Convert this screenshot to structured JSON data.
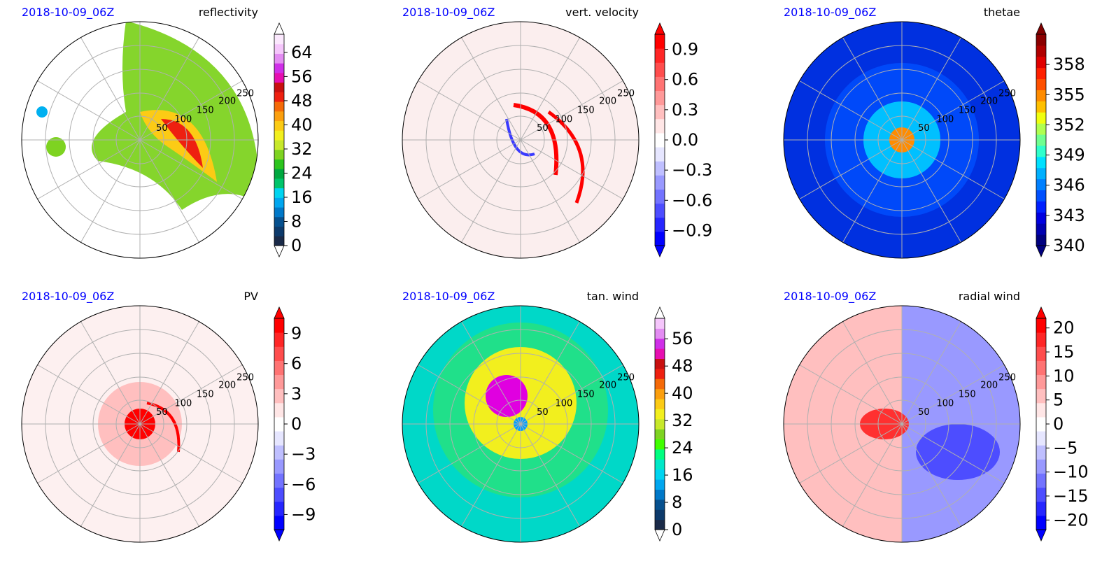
{
  "figure": {
    "background": "#ffffff"
  },
  "chart_data": [
    {
      "type": "heatmap",
      "projection": "polar",
      "date_label": "2018-10-09_06Z",
      "title": "reflectivity",
      "ring_labels": [
        "50",
        "100",
        "150",
        "200",
        "250"
      ],
      "colorbar": {
        "ticks": [
          "0",
          "8",
          "16",
          "24",
          "32",
          "40",
          "48",
          "56",
          "64"
        ],
        "range": [
          0,
          70
        ],
        "extend": "both",
        "colors": [
          "#1a2a48",
          "#0d3a6b",
          "#06508e",
          "#0078c8",
          "#00a6ef",
          "#00d4f0",
          "#00c46a",
          "#00a840",
          "#2cc41e",
          "#7ed321",
          "#c7e82a",
          "#f2ef1e",
          "#fccb15",
          "#fb9f0e",
          "#f56a08",
          "#ee2010",
          "#c81010",
          "#e60fb0",
          "#cf2fe8",
          "#e38cf2",
          "#f5c6fb",
          "#fbe8fd"
        ],
        "extend_low": "#ffffff",
        "extend_high": "#ffffff"
      },
      "field_colors": {
        "background": "#ffffff",
        "weak": "#00b0f0",
        "moderate": "#7ed321",
        "strong": "#fccb15",
        "core": "#ee2010"
      }
    },
    {
      "type": "heatmap",
      "projection": "polar",
      "date_label": "2018-10-09_06Z",
      "title": "vert. velocity",
      "ring_labels": [
        "50",
        "100",
        "150",
        "200",
        "250"
      ],
      "colorbar": {
        "ticks": [
          "0.9",
          "0.6",
          "0.3",
          "0.0",
          "−0.3",
          "−0.6",
          "−0.9"
        ],
        "range": [
          -1.05,
          1.05
        ],
        "extend": "both",
        "colors": [
          "#0000ff",
          "#2626ff",
          "#4d4dff",
          "#7373ff",
          "#9999ff",
          "#bfbfff",
          "#e6e6ff",
          "#ffffff",
          "#ffe6e6",
          "#ffbfbf",
          "#ff9999",
          "#ff7373",
          "#ff4d4d",
          "#ff2626",
          "#ff0000"
        ],
        "extend_low": "#0000ff",
        "extend_high": "#ff0000"
      },
      "field_colors": {
        "background": "#fbeeee",
        "up": "#ff0000",
        "down": "#3a3aff"
      }
    },
    {
      "type": "heatmap",
      "projection": "polar",
      "date_label": "2018-10-09_06Z",
      "title": "thetae",
      "ring_labels": [
        "50",
        "100",
        "150",
        "200",
        "250"
      ],
      "colorbar": {
        "ticks": [
          "340",
          "343",
          "346",
          "349",
          "352",
          "355",
          "358"
        ],
        "range": [
          340,
          361
        ],
        "extend": "both",
        "colors": [
          "#00007f",
          "#0000b0",
          "#0000e0",
          "#0020ff",
          "#0050ff",
          "#0080ff",
          "#00b0ff",
          "#00e0ff",
          "#30ffcc",
          "#70ff90",
          "#b0ff50",
          "#f0ff10",
          "#ffc000",
          "#ff8c00",
          "#ff5000",
          "#ff2000",
          "#e00000",
          "#b00000",
          "#8b0000"
        ],
        "extend_low": "#00007f",
        "extend_high": "#800000"
      },
      "field_colors": {
        "background": "#0030e0",
        "mid": "#00c0ff",
        "warm_core": "#ff8c00"
      }
    },
    {
      "type": "heatmap",
      "projection": "polar",
      "date_label": "2018-10-09_06Z",
      "title": "PV",
      "ring_labels": [
        "50",
        "100",
        "150",
        "200",
        "250"
      ],
      "colorbar": {
        "ticks": [
          "9",
          "6",
          "3",
          "0",
          "−3",
          "−6",
          "−9"
        ],
        "range": [
          -10.5,
          10.5
        ],
        "extend": "both",
        "colors": [
          "#0000ff",
          "#2626ff",
          "#4d4dff",
          "#7373ff",
          "#9999ff",
          "#bfbfff",
          "#e6e6ff",
          "#ffffff",
          "#ffe6e6",
          "#ffbfbf",
          "#ff9999",
          "#ff7373",
          "#ff4d4d",
          "#ff2626",
          "#ff0000"
        ],
        "extend_low": "#0000ff",
        "extend_high": "#ff0000"
      },
      "field_colors": {
        "background": "#fdf0f0",
        "positive": "#ff0000",
        "negative": "#4040ff"
      }
    },
    {
      "type": "heatmap",
      "projection": "polar",
      "date_label": "2018-10-09_06Z",
      "title": "tan. wind",
      "ring_labels": [
        "50",
        "100",
        "150",
        "200",
        "250"
      ],
      "colorbar": {
        "ticks": [
          "0",
          "8",
          "16",
          "24",
          "32",
          "40",
          "48",
          "56"
        ],
        "range": [
          0,
          62
        ],
        "extend": "both",
        "colors": [
          "#1a2a48",
          "#0d3a6b",
          "#06508e",
          "#0078c8",
          "#00a6ef",
          "#00d4f0",
          "#00e8c8",
          "#00ff80",
          "#40ff00",
          "#7ed321",
          "#c7e82a",
          "#f2ef1e",
          "#fccb15",
          "#fb9f0e",
          "#f56a08",
          "#ee2010",
          "#c81010",
          "#e60fb0",
          "#cf2fe8",
          "#e38cf2",
          "#f5c6fb"
        ],
        "extend_low": "#ffffff",
        "extend_high": "#ffffff"
      },
      "field_colors": {
        "background": "#20e08a",
        "ring": "#f2ef1e",
        "max": "#e000e0",
        "outer": "#00d8c8"
      }
    },
    {
      "type": "heatmap",
      "projection": "polar",
      "date_label": "2018-10-09_06Z",
      "title": "radial wind",
      "ring_labels": [
        "50",
        "100",
        "150",
        "200",
        "250"
      ],
      "colorbar": {
        "ticks": [
          "20",
          "15",
          "10",
          "5",
          "0",
          "−5",
          "−10",
          "−15",
          "−20"
        ],
        "range": [
          -22,
          22
        ],
        "extend": "both",
        "colors": [
          "#0000ff",
          "#2626ff",
          "#4d4dff",
          "#7373ff",
          "#9999ff",
          "#bfbfff",
          "#e6e6ff",
          "#ffffff",
          "#ffe6e6",
          "#ffbfbf",
          "#ff9999",
          "#ff7373",
          "#ff4d4d",
          "#ff2626",
          "#ff0000"
        ],
        "extend_low": "#0000ff",
        "extend_high": "#ff0000"
      },
      "field_colors": {
        "inflow": "#ff3030",
        "outflow": "#3a3aff",
        "neutral": "#f6f6ff"
      }
    }
  ]
}
